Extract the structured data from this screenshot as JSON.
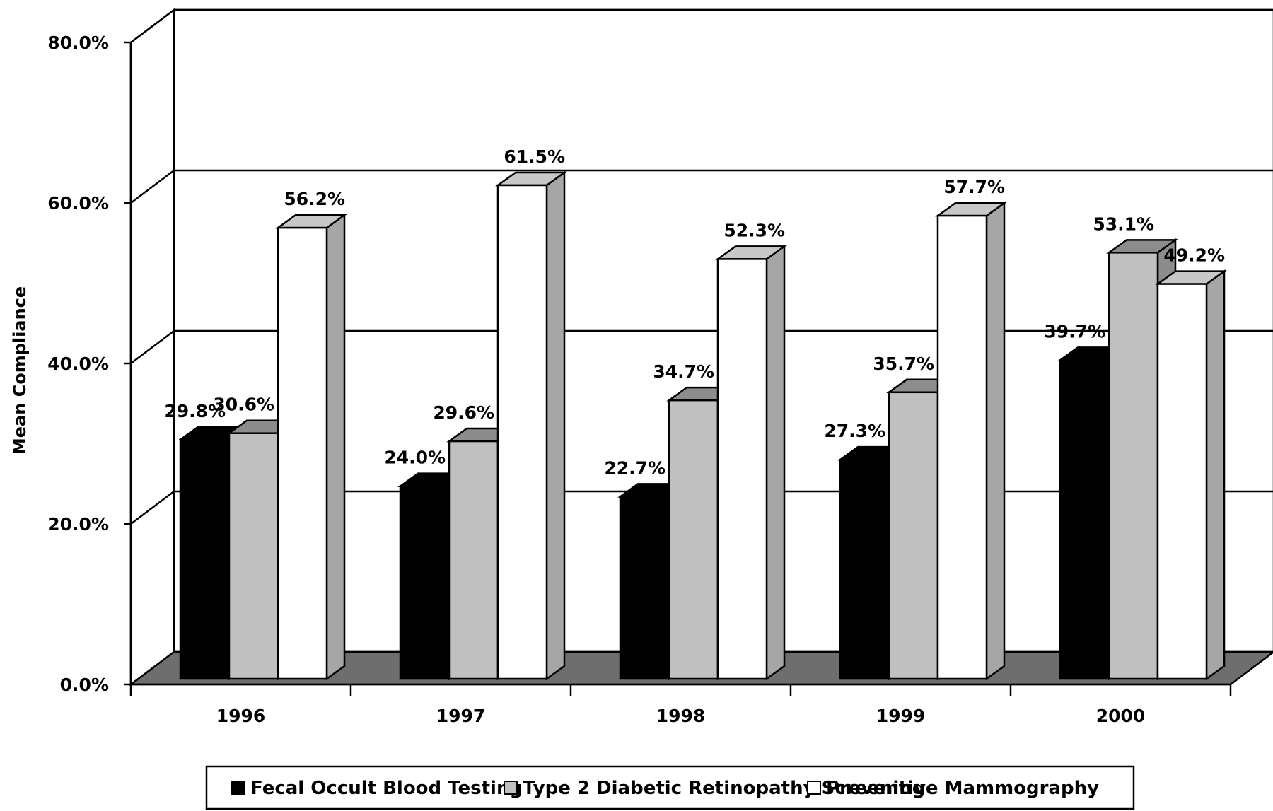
{
  "chart_data": {
    "type": "bar",
    "title": "",
    "xlabel": "",
    "ylabel": "Mean Compliance",
    "ylim": [
      0,
      80
    ],
    "yticks": [
      0,
      20,
      40,
      60,
      80
    ],
    "ytick_labels": [
      "0.0%",
      "20.0%",
      "40.0%",
      "60.0%",
      "80.0%"
    ],
    "categories": [
      "1996",
      "1997",
      "1998",
      "1999",
      "2000"
    ],
    "series": [
      {
        "name": "Fecal Occult Blood Testing",
        "color": "#000000",
        "values": [
          29.8,
          24.0,
          22.7,
          27.3,
          39.7
        ],
        "labels": [
          "29.8%",
          "24.0%",
          "22.7%",
          "27.3%",
          "39.7%"
        ]
      },
      {
        "name": "Type 2 Diabetic Retinopathy Screening",
        "color": "#c0c0c0",
        "values": [
          30.6,
          29.6,
          34.7,
          35.7,
          53.1
        ],
        "labels": [
          "30.6%",
          "29.6%",
          "34.7%",
          "35.7%",
          "53.1%"
        ]
      },
      {
        "name": "Preventive Mammography",
        "color": "#ffffff",
        "values": [
          56.2,
          61.5,
          52.3,
          57.7,
          49.2
        ],
        "labels": [
          "56.2%",
          "61.5%",
          "52.3%",
          "57.7%",
          "49.2%"
        ]
      }
    ],
    "grid": true,
    "style": "3d-clustered-bar",
    "floor_color": "#6e6e6e",
    "legend_position": "bottom"
  }
}
